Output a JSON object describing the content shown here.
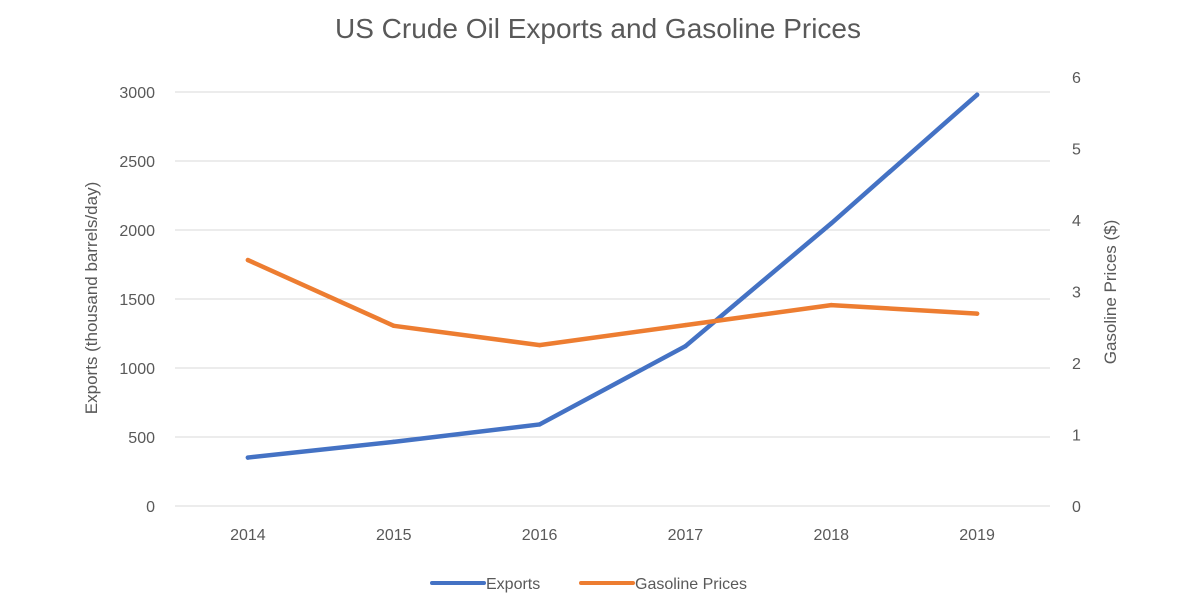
{
  "chart_data": {
    "type": "line",
    "title": "US Crude Oil Exports and Gasoline Prices",
    "categories": [
      "2014",
      "2015",
      "2016",
      "2017",
      "2018",
      "2019"
    ],
    "series": [
      {
        "name": "Exports",
        "axis": "left",
        "color": "#4472C4",
        "values": [
          351,
          465,
          591,
          1158,
          2048,
          2980
        ]
      },
      {
        "name": "Gasoline Prices",
        "axis": "right",
        "color": "#ED7D31",
        "values": [
          3.44,
          2.52,
          2.25,
          2.53,
          2.81,
          2.69
        ]
      }
    ],
    "y_left": {
      "label": "Exports (thousand barrels/day)",
      "ylim": [
        0,
        3000
      ],
      "ticks": [
        "0",
        "500",
        "1000",
        "1500",
        "2000",
        "2500",
        "3000"
      ]
    },
    "y_right": {
      "label": "Gasoline Prices ($)",
      "ylim": [
        0,
        6
      ],
      "ticks": [
        "0",
        "1",
        "2",
        "3",
        "4",
        "5",
        "6"
      ]
    },
    "xlabel": "",
    "grid": true,
    "legend": {
      "position": "bottom",
      "entries": [
        "Exports",
        "Gasoline Prices"
      ]
    }
  }
}
